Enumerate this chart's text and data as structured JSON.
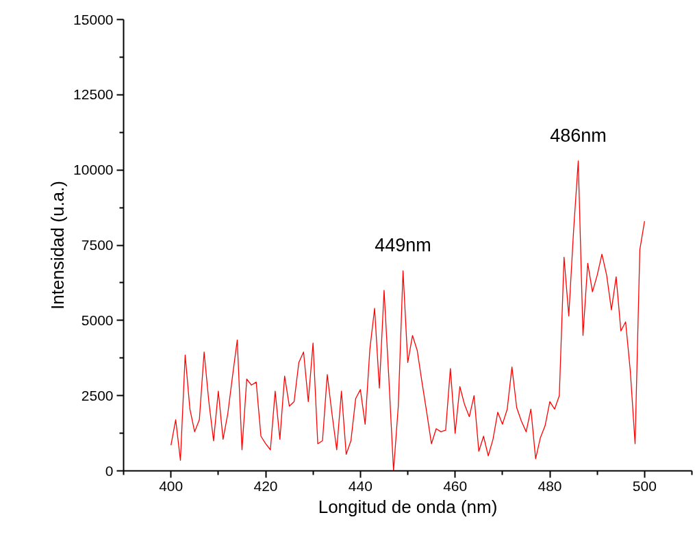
{
  "chart_data": {
    "type": "line",
    "xlabel": "Longitud de onda (nm)",
    "ylabel": "Intensidad (u.a.)",
    "x": [
      400,
      401,
      402,
      403,
      404,
      405,
      406,
      407,
      408,
      409,
      410,
      411,
      412,
      413,
      414,
      415,
      416,
      417,
      418,
      419,
      420,
      421,
      422,
      423,
      424,
      425,
      426,
      427,
      428,
      429,
      430,
      431,
      432,
      433,
      434,
      435,
      436,
      437,
      438,
      439,
      440,
      441,
      442,
      443,
      444,
      445,
      446,
      447,
      448,
      449,
      450,
      451,
      452,
      453,
      454,
      455,
      456,
      457,
      458,
      459,
      460,
      461,
      462,
      463,
      464,
      465,
      466,
      467,
      468,
      469,
      470,
      471,
      472,
      473,
      474,
      475,
      476,
      477,
      478,
      479,
      480,
      481,
      482,
      483,
      484,
      485,
      486,
      487,
      488,
      489,
      490,
      491,
      492,
      493,
      494,
      495,
      496,
      497,
      498,
      499,
      500
    ],
    "series": [
      {
        "color": "#ff0000",
        "values": [
          850,
          1700,
          350,
          3850,
          2050,
          1300,
          1700,
          3950,
          2300,
          1000,
          2650,
          1050,
          1900,
          3150,
          4350,
          700,
          3050,
          2850,
          2950,
          1150,
          900,
          700,
          2650,
          1050,
          3150,
          2150,
          2300,
          3600,
          3950,
          2300,
          4250,
          900,
          1000,
          3200,
          1900,
          700,
          2650,
          550,
          1000,
          2400,
          2700,
          1550,
          4050,
          5400,
          2750,
          6000,
          3100,
          0,
          2150,
          6650,
          3600,
          4500,
          4000,
          2950,
          1950,
          900,
          1400,
          1300,
          1350,
          3400,
          1250,
          2800,
          2200,
          1800,
          2500,
          650,
          1150,
          500,
          1050,
          1950,
          1550,
          2050,
          3450,
          2100,
          1650,
          1300,
          2050,
          400,
          1100,
          1500,
          2300,
          2050,
          2500,
          7100,
          5150,
          7950,
          10300,
          4500,
          6900,
          5950,
          6500,
          7200,
          6500,
          5350,
          6450,
          4650,
          4950,
          3300,
          900,
          7350,
          8300
        ]
      }
    ],
    "xlim": [
      390,
      510
    ],
    "ylim": [
      0,
      15000
    ],
    "xticks": [
      {
        "value": 390,
        "label": null
      },
      400,
      {
        "value": 410,
        "label": null
      },
      420,
      {
        "value": 430,
        "label": null
      },
      440,
      {
        "value": 450,
        "label": null
      },
      460,
      {
        "value": 470,
        "label": null
      },
      480,
      {
        "value": 490,
        "label": null
      },
      500,
      {
        "value": 510,
        "label": null
      }
    ],
    "yticks": [
      0,
      {
        "value": 1250,
        "label": null
      },
      2500,
      {
        "value": 3750,
        "label": null
      },
      5000,
      {
        "value": 6250,
        "label": null
      },
      7500,
      {
        "value": 8750,
        "label": null
      },
      10000,
      {
        "value": 11250,
        "label": null
      },
      12500,
      {
        "value": 13750,
        "label": null
      },
      15000
    ],
    "annotations": [
      {
        "text": "449nm",
        "x": 449,
        "y": 6650
      },
      {
        "text": "486nm",
        "x": 486,
        "y": 10300
      }
    ],
    "grid": false,
    "marker": "none",
    "line_style": "solid"
  }
}
